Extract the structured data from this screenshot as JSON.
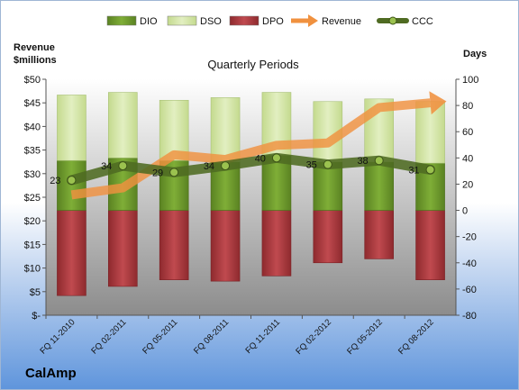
{
  "company": "CalAmp",
  "chart_data": {
    "type": "bar",
    "title": "Quarterly Periods",
    "left_axis_label_line1": "Revenue",
    "left_axis_label_line2": "$millions",
    "right_axis_label": "Days",
    "categories": [
      "FQ 11-2010",
      "FQ 02-2011",
      "FQ 05-2011",
      "FQ 08-2011",
      "FQ 11-2011",
      "FQ 02-2012",
      "FQ 05-2012",
      "FQ 08-2012"
    ],
    "left_ylim": [
      0,
      50
    ],
    "left_ticks": [
      "$-",
      "$5",
      "$10",
      "$15",
      "$20",
      "$25",
      "$30",
      "$35",
      "$40",
      "$45",
      "$50"
    ],
    "right_ylim": [
      -80,
      100
    ],
    "right_ticks": [
      "-80",
      "-60",
      "-40",
      "-20",
      "0",
      "20",
      "40",
      "60",
      "80",
      "100"
    ],
    "legend_position": "top",
    "legend": [
      "DIO",
      "DSO",
      "DPO",
      "Revenue",
      "CCC"
    ],
    "series": [
      {
        "name": "DIO",
        "axis": "right",
        "values": [
          38,
          40,
          38,
          37,
          42,
          37,
          37,
          36
        ]
      },
      {
        "name": "DSO",
        "axis": "right",
        "values": [
          50,
          50,
          46,
          49,
          48,
          46,
          48,
          47
        ]
      },
      {
        "name": "DPO",
        "axis": "right",
        "values": [
          -65,
          -58,
          -53,
          -54,
          -50,
          -40,
          -37,
          -53
        ]
      },
      {
        "name": "Revenue",
        "axis": "left",
        "values": [
          25.5,
          27,
          34,
          33,
          36,
          36.5,
          44,
          45
        ]
      },
      {
        "name": "CCC",
        "axis": "right",
        "values": [
          23,
          34,
          29,
          34,
          40,
          35,
          38,
          31
        ]
      }
    ],
    "ccc_labels": [
      "23",
      "34",
      "29",
      "34",
      "40",
      "35",
      "38",
      "31"
    ],
    "colors": {
      "DIO": "#6f9a2a",
      "DSO": "#d3e5a6",
      "DPO": "#a8353a",
      "Revenue": "#f0913f",
      "CCC": "#5a7a25"
    },
    "grid": false
  }
}
